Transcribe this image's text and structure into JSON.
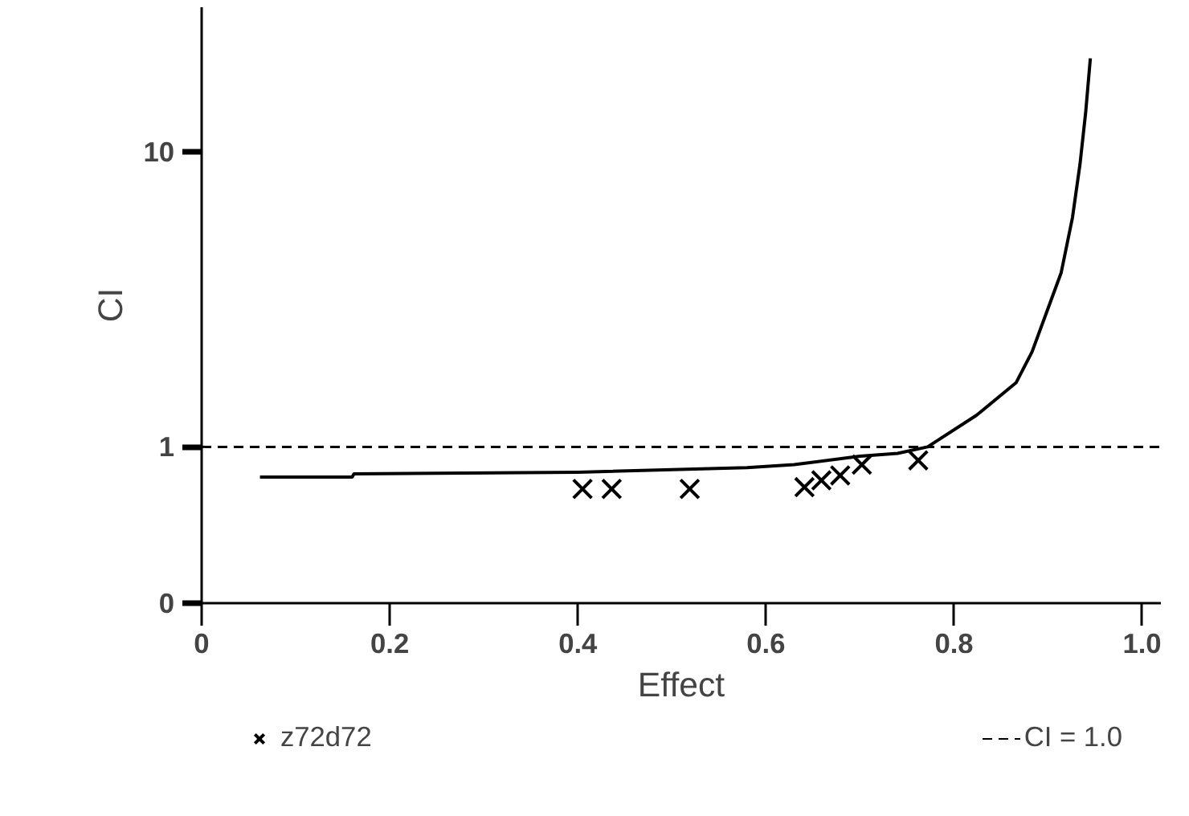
{
  "chart_data": {
    "type": "scatter",
    "xlabel": "Effect",
    "ylabel": "CI",
    "xlim": [
      0,
      1.02
    ],
    "xticks": [
      {
        "value": 0,
        "label": "0"
      },
      0.2,
      0.4,
      0.6,
      0.8,
      {
        "value": 1,
        "label": "1.0"
      }
    ],
    "ylim": [
      0.295,
      31
    ],
    "yticks": [
      {
        "value": 0.295,
        "label": "0"
      },
      1,
      10
    ],
    "log": true,
    "series": [
      {
        "type": "line",
        "color": "#000000",
        "line_style": "solid",
        "x": [
          0.062,
          0.16,
          0.162,
          0.4,
          0.58,
          0.63,
          0.7,
          0.74,
          0.772,
          0.824,
          0.866,
          0.883,
          0.9,
          0.914,
          0.926,
          0.934,
          0.94,
          0.945
        ],
        "values": [
          0.79,
          0.79,
          0.81,
          0.82,
          0.85,
          0.87,
          0.93,
          0.95,
          1.0,
          1.28,
          1.65,
          2.1,
          2.95,
          3.9,
          6.0,
          9.1,
          13.6,
          20.8
        ]
      },
      {
        "name": "z72d72",
        "type": "scatter",
        "marker": "cross",
        "color": "#000000",
        "x": [
          0.405,
          0.436,
          0.519,
          0.641,
          0.659,
          0.679,
          0.702,
          0.762
        ],
        "values": [
          0.72,
          0.72,
          0.72,
          0.73,
          0.77,
          0.8,
          0.87,
          0.9
        ]
      }
    ],
    "ref_lines": [
      {
        "axis": "y",
        "value": 1.0,
        "label": "CI = 1.0",
        "color": "#000000",
        "line_style": "dashed"
      }
    ],
    "legend": "bottom",
    "grid": false
  }
}
